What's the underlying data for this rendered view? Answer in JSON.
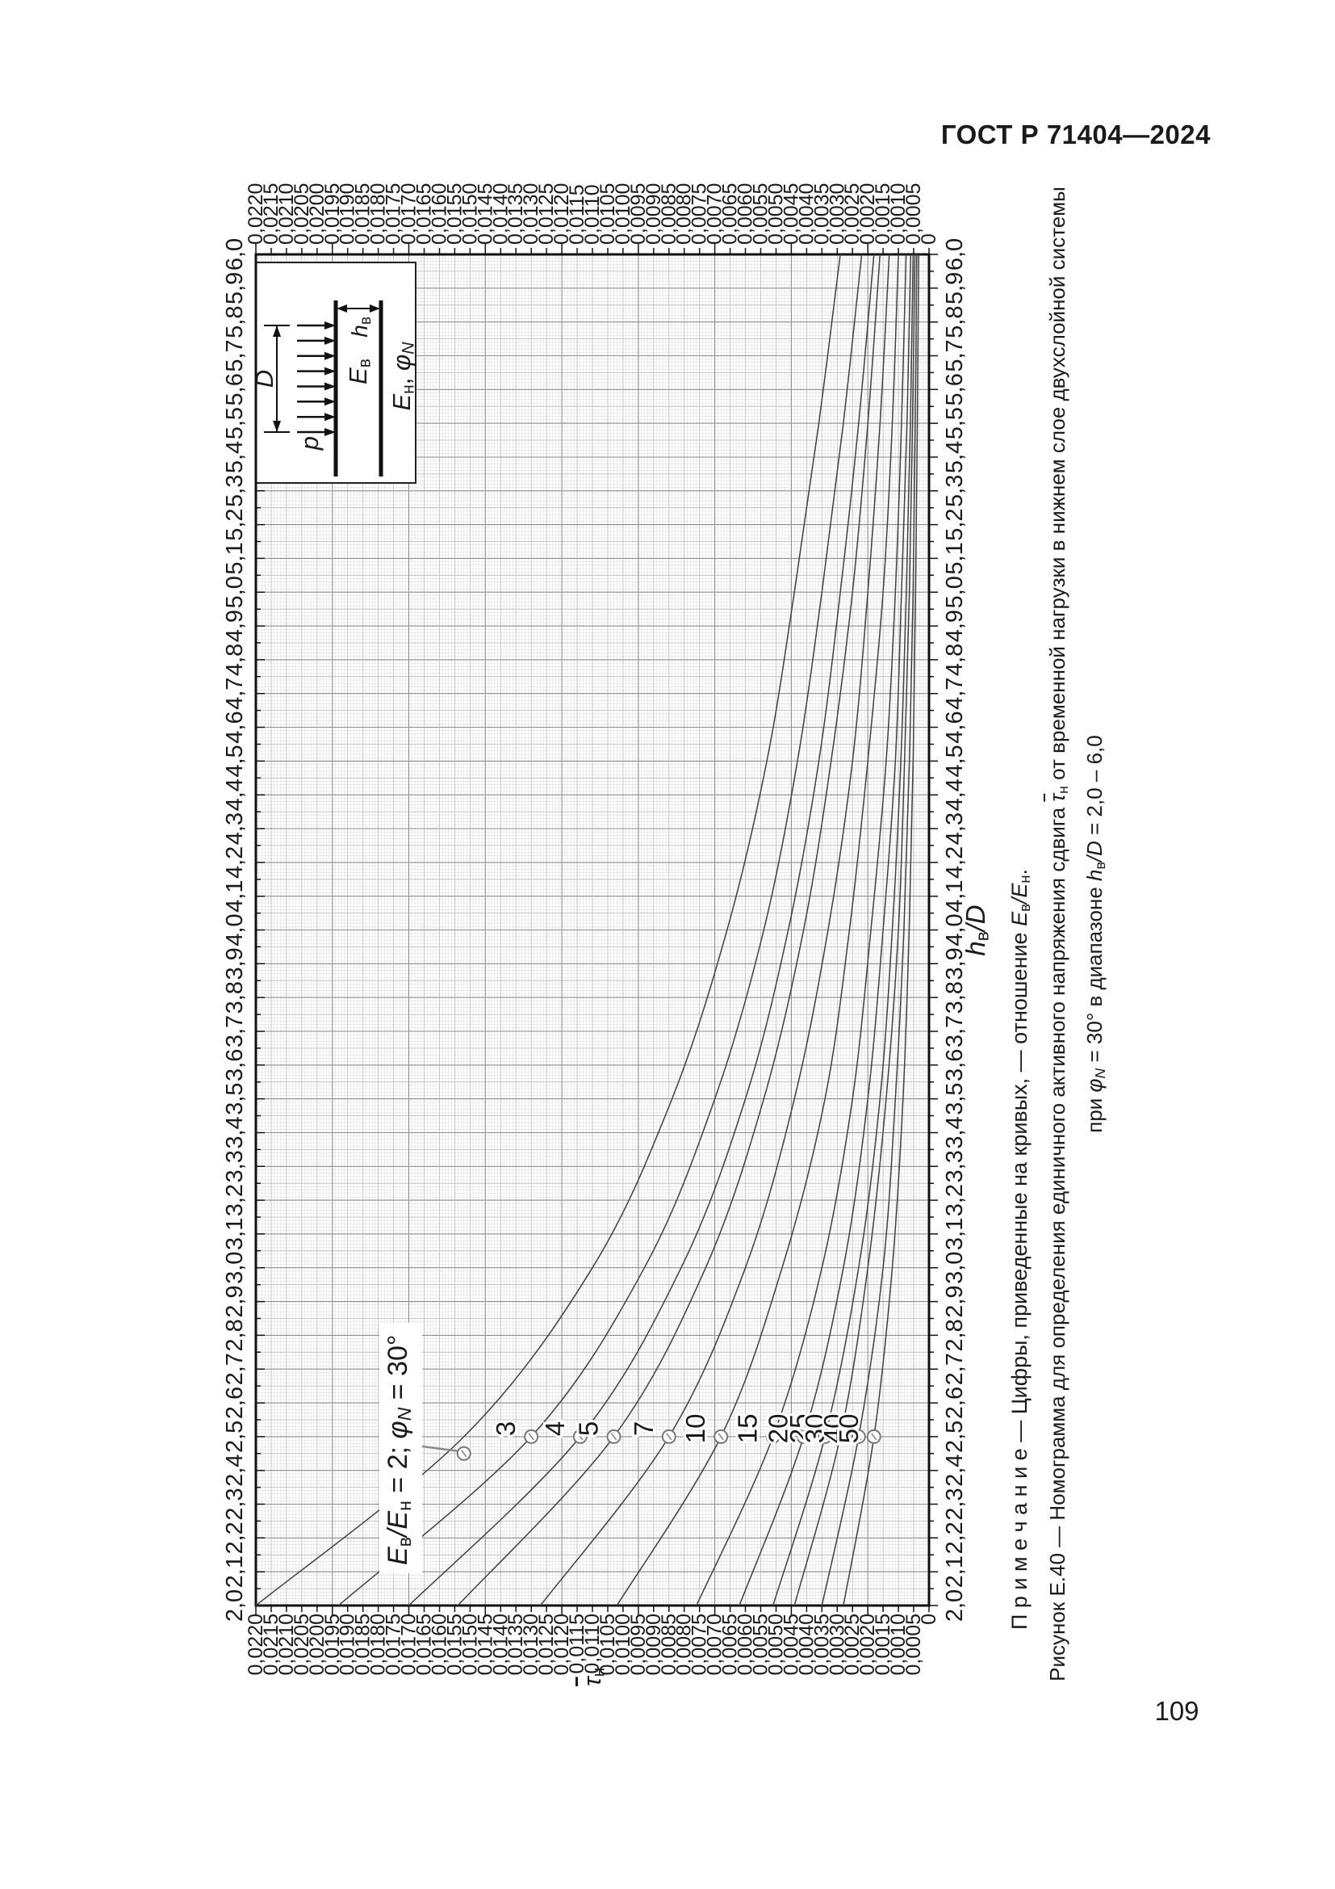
{
  "page": {
    "header": "ГОСТ Р 71404—2024",
    "page_number": "109"
  },
  "figure": {
    "callout": {
      "e1": "E",
      "e1sub": "в",
      "slash": "/",
      "e2": "E",
      "e2sub": "н",
      "mid": " = 2; ",
      "phi": "φ",
      "phisub": "N",
      "end": " = 30°"
    },
    "note": {
      "lead": "П р и м е ч а н и е — Цифры, приведенные на кривых, — отношение ",
      "e1": "E",
      "e1sub": "в",
      "slash": "/",
      "e2": "E",
      "e2sub": "н",
      "end": "."
    },
    "caption_line1": {
      "pre": "Рисунок Е.40 — Номограмма для определения единичного активного напряжения сдвига ",
      "tau": "τ",
      "tausub": "н",
      "post": " от временной нагрузки в нижнем слое двухслойной системы"
    },
    "caption_line2": {
      "p1": "при ",
      "phi": "φ",
      "phisub": "N",
      "p2": " = 30° в диапазоне ",
      "h": "h",
      "hsub": "в",
      "slash": "/",
      "d": "D",
      "end": " = 2,0 – 6,0"
    },
    "axis_x": {
      "h": "h",
      "hsub": "в",
      "slash": "/",
      "d": "D"
    },
    "axis_y": {
      "tau": "τ",
      "tausub": "н"
    },
    "inset": {
      "p": "p",
      "d": "D",
      "e_top": "E",
      "e_top_sub": "в",
      "h": "h",
      "hsub": "в",
      "e_bot": "E",
      "e_bot_sub": "н",
      "e_bot_rest": ", ",
      "phi": "φ",
      "phisub": "N"
    }
  },
  "chart_data": {
    "type": "line",
    "title": "Рисунок Е.40 — Номограмма для определения единичного активного напряжения сдвига τн от временной нагрузки в нижнем слое двухслойной системы при φN = 30° в диапазоне hв/D = 2,0 – 6,0",
    "note": "Цифры, приведенные на кривых, — отношение Eв/Eн",
    "xlabel": "hв/D",
    "ylabel": "τн",
    "xlim": [
      2.0,
      6.0
    ],
    "ylim": [
      0,
      0.022
    ],
    "x_tick_step": 0.1,
    "y_tick_step": 0.0005,
    "grid": "fine graph-paper, labels on all four sides",
    "orientation_on_page": "figure rotated 90° counter-clockwise",
    "x": [
      2.0,
      2.5,
      3.0,
      3.5,
      4.0,
      4.5,
      5.0,
      5.5,
      6.0
    ],
    "series": [
      {
        "name": "2",
        "label_via_callout": true,
        "marker": [
          2.45,
          0.0152
        ],
        "values": [
          0.022,
          0.0152,
          0.011,
          0.0084,
          0.0066,
          0.0053,
          0.0044,
          0.0036,
          0.0029
        ]
      },
      {
        "name": "3",
        "marker": [
          2.5,
          0.013
        ],
        "values": [
          0.0193,
          0.013,
          0.0093,
          0.007,
          0.0054,
          0.0043,
          0.0035,
          0.0028,
          0.0022
        ]
      },
      {
        "name": "4",
        "marker": [
          2.5,
          0.0114
        ],
        "values": [
          0.017,
          0.0114,
          0.0081,
          0.006,
          0.0046,
          0.0036,
          0.0029,
          0.0023,
          0.0018
        ]
      },
      {
        "name": "5",
        "marker": [
          2.5,
          0.0103
        ],
        "values": [
          0.0154,
          0.0103,
          0.0073,
          0.0054,
          0.0041,
          0.0032,
          0.0025,
          0.002,
          0.0016
        ]
      },
      {
        "name": "7",
        "marker": [
          2.5,
          0.0085
        ],
        "values": [
          0.0127,
          0.0085,
          0.006,
          0.0044,
          0.0033,
          0.0025,
          0.002,
          0.0016,
          0.0013
        ]
      },
      {
        "name": "10",
        "marker": [
          2.5,
          0.0068
        ],
        "values": [
          0.0102,
          0.0068,
          0.0048,
          0.0034,
          0.0026,
          0.002,
          0.0015,
          0.0012,
          0.001
        ]
      },
      {
        "name": "15",
        "marker": [
          2.5,
          0.0051
        ],
        "values": [
          0.0076,
          0.0051,
          0.0035,
          0.0025,
          0.0019,
          0.0014,
          0.0011,
          0.0009,
          0.00075
        ]
      },
      {
        "name": "20",
        "marker": [
          2.5,
          0.0041
        ],
        "values": [
          0.0062,
          0.0041,
          0.0028,
          0.002,
          0.0015,
          0.0011,
          0.0009,
          0.00072,
          0.0006
        ]
      },
      {
        "name": "25",
        "marker": [
          2.5,
          0.0034
        ],
        "values": [
          0.0051,
          0.0034,
          0.0023,
          0.0016,
          0.0012,
          0.00092,
          0.00074,
          0.00061,
          0.00052
        ]
      },
      {
        "name": "30",
        "marker": [
          2.5,
          0.0029
        ],
        "values": [
          0.0044,
          0.0029,
          0.002,
          0.0014,
          0.001,
          0.0008,
          0.00064,
          0.00054,
          0.00046
        ]
      },
      {
        "name": "40",
        "marker": [
          2.5,
          0.0023
        ],
        "values": [
          0.0035,
          0.0023,
          0.0015,
          0.0011,
          0.00082,
          0.00064,
          0.00052,
          0.00045,
          0.0004
        ]
      },
      {
        "name": "50",
        "marker": [
          2.5,
          0.0018
        ],
        "values": [
          0.0028,
          0.0018,
          0.0012,
          0.00085,
          0.00065,
          0.00052,
          0.00044,
          0.00038,
          0.00034
        ]
      }
    ]
  }
}
